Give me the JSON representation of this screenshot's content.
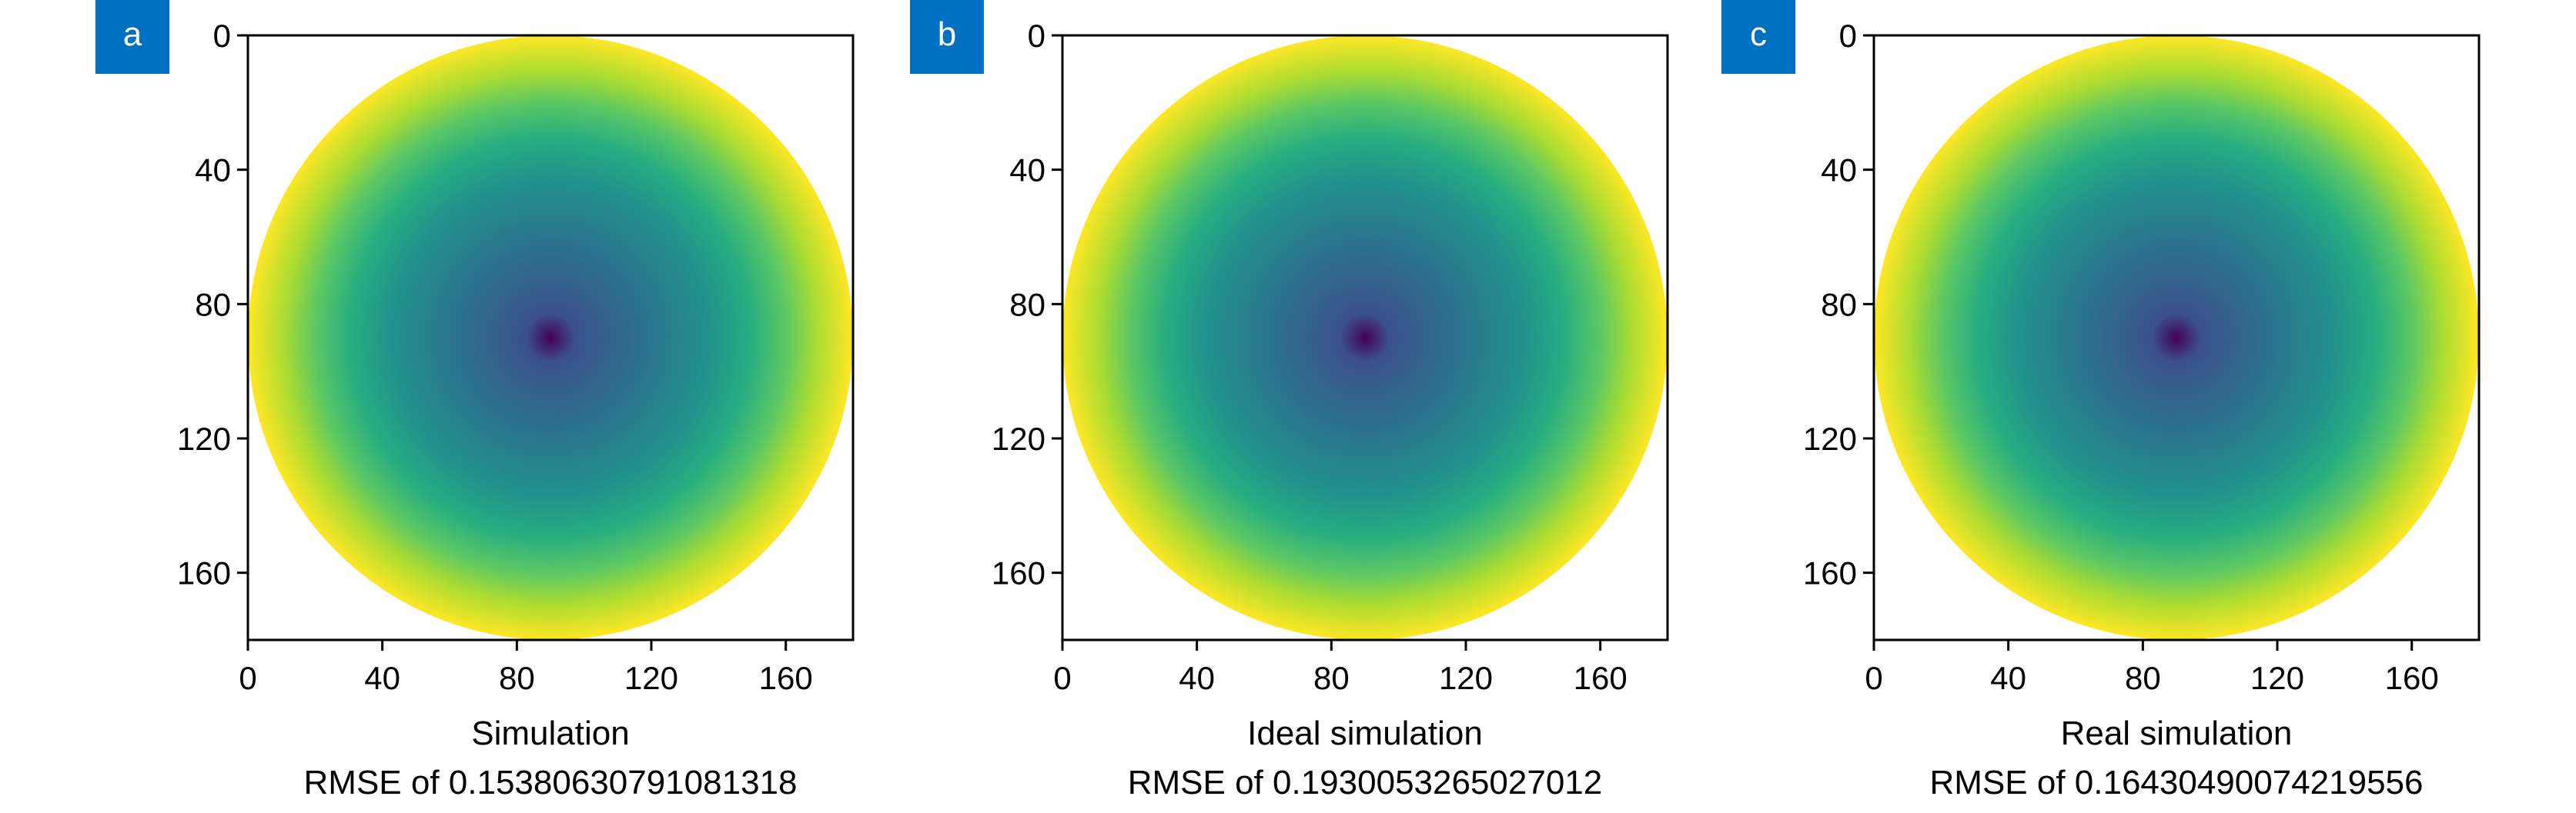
{
  "chart_data": [
    {
      "type": "heatmap",
      "panel_label": "a",
      "xlabel": "Simulation",
      "caption": "RMSE of 0.15380630791081318",
      "x_ticks": [
        "0",
        "40",
        "80",
        "120",
        "160"
      ],
      "y_ticks": [
        "0",
        "40",
        "80",
        "120",
        "160"
      ],
      "xlim": [
        0,
        180
      ],
      "ylim": [
        180,
        0
      ],
      "colormap": "viridis",
      "aperture": "circular",
      "center": [
        90,
        90
      ],
      "radius": 90,
      "grid": false
    },
    {
      "type": "heatmap",
      "panel_label": "b",
      "xlabel": "Ideal simulation",
      "caption": "RMSE of 0.1930053265027012",
      "x_ticks": [
        "0",
        "40",
        "80",
        "120",
        "160"
      ],
      "y_ticks": [
        "0",
        "40",
        "80",
        "120",
        "160"
      ],
      "xlim": [
        0,
        180
      ],
      "ylim": [
        180,
        0
      ],
      "colormap": "viridis",
      "aperture": "circular",
      "center": [
        90,
        90
      ],
      "radius": 90,
      "grid": false
    },
    {
      "type": "heatmap",
      "panel_label": "c",
      "xlabel": "Real simulation",
      "caption": "RMSE of 0.16430490074219556",
      "x_ticks": [
        "0",
        "40",
        "80",
        "120",
        "160"
      ],
      "y_ticks": [
        "0",
        "40",
        "80",
        "120",
        "160"
      ],
      "xlim": [
        0,
        180
      ],
      "ylim": [
        180,
        0
      ],
      "colormap": "viridis",
      "aperture": "circular",
      "center": [
        90,
        90
      ],
      "radius": 90,
      "grid": false
    }
  ],
  "colors": {
    "label_badge": "#0070c0",
    "label_text": "#ffffff",
    "viridis": [
      "#440154",
      "#3b518b",
      "#2c718e",
      "#21918c",
      "#27ad81",
      "#5cc863",
      "#aadc32",
      "#fde725"
    ]
  }
}
